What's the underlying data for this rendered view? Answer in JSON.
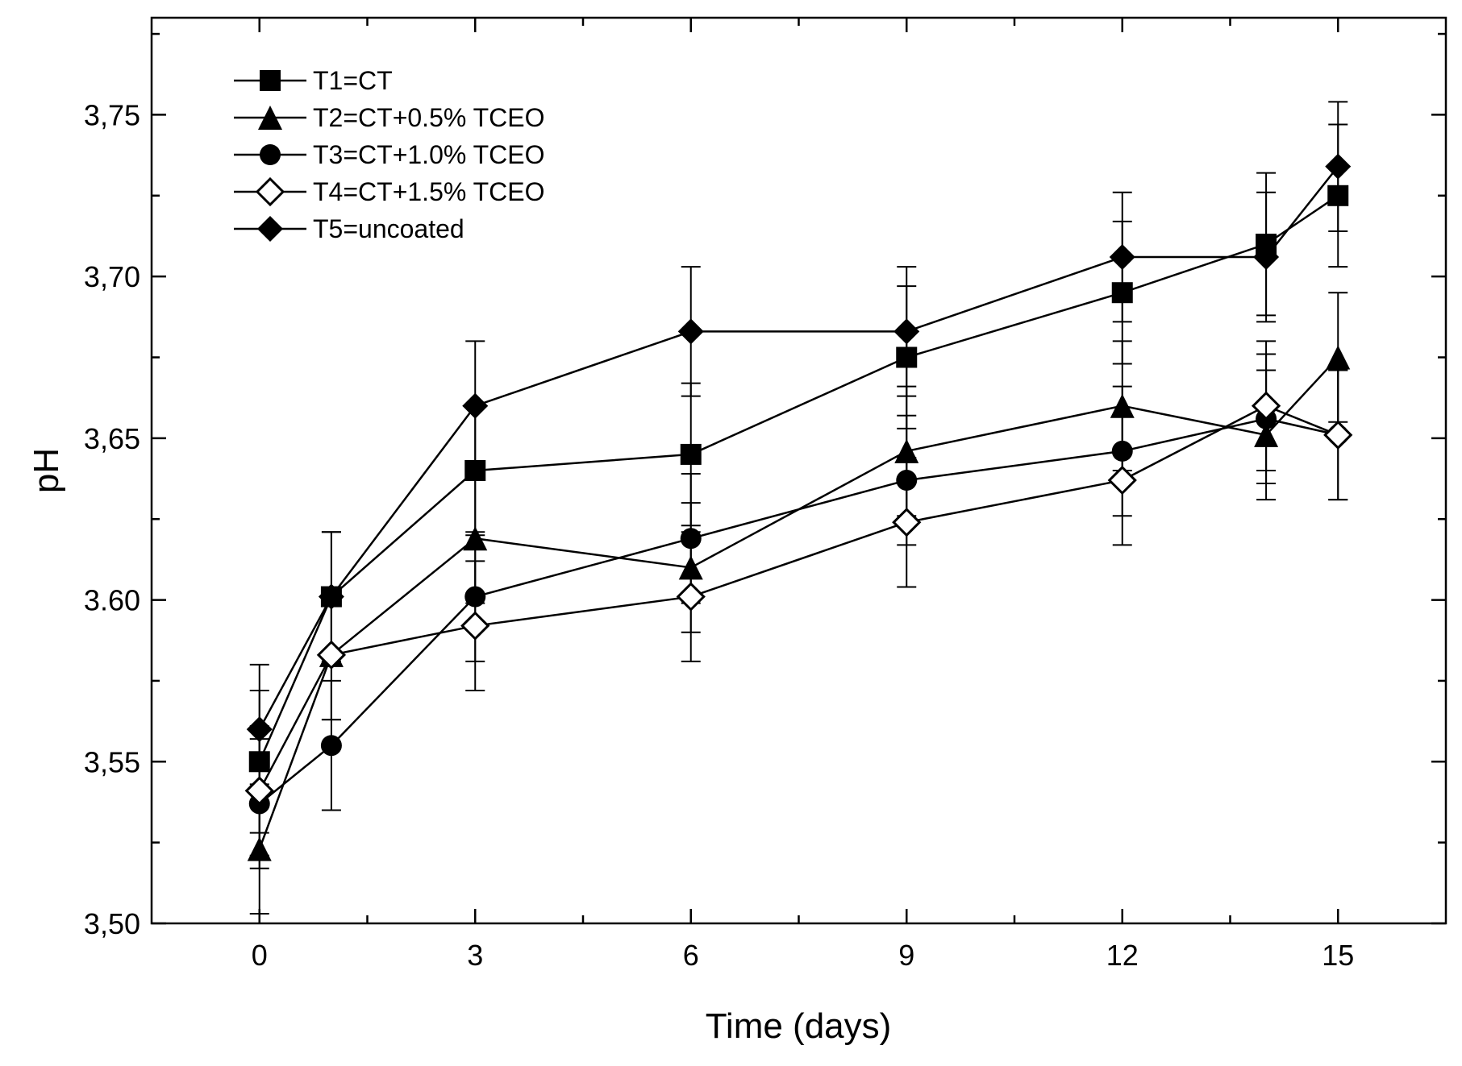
{
  "chart_data": {
    "type": "line",
    "title": "",
    "xlabel": "Time (days)",
    "ylabel": "pH",
    "xlim": [
      -1.5,
      16.5
    ],
    "ylim": [
      3.5,
      3.78
    ],
    "x_major_ticks": [
      0,
      3,
      6,
      9,
      12,
      15
    ],
    "x_tick_labels": [
      "0",
      "3",
      "6",
      "9",
      "12",
      "15"
    ],
    "x_minor_ticks": [
      1.5,
      4.5,
      7.5,
      10.5,
      13.5
    ],
    "y_major_ticks": [
      3.5,
      3.55,
      3.6,
      3.65,
      3.7,
      3.75
    ],
    "y_tick_labels": [
      "3,50",
      "3,55",
      "3.60",
      "3,65",
      "3,70",
      "3,75"
    ],
    "y_minor_ticks": [
      3.525,
      3.575,
      3.625,
      3.675,
      3.725,
      3.775
    ],
    "grid": false,
    "legend_position": "top-left",
    "x": [
      0,
      1,
      3,
      6,
      9,
      12,
      14,
      15
    ],
    "series": [
      {
        "name": "T1=CT",
        "marker": "filled-square",
        "values": [
          3.55,
          3.601,
          3.64,
          3.645,
          3.675,
          3.695,
          3.71,
          3.725
        ],
        "errors": [
          0.022,
          0.02,
          0.02,
          0.022,
          0.022,
          0.022,
          0.022,
          0.022
        ]
      },
      {
        "name": "T2=CT+0.5% TCEO",
        "marker": "filled-triangle",
        "values": [
          3.523,
          3.583,
          3.619,
          3.61,
          3.646,
          3.66,
          3.651,
          3.675
        ],
        "errors": [
          0.02,
          0.02,
          0.02,
          0.02,
          0.02,
          0.02,
          0.02,
          0.02
        ]
      },
      {
        "name": "T3=CT+1.0% TCEO",
        "marker": "filled-circle",
        "values": [
          3.537,
          3.555,
          3.601,
          3.619,
          3.637,
          3.646,
          3.656,
          3.651
        ],
        "errors": [
          0.02,
          0.02,
          0.02,
          0.02,
          0.02,
          0.02,
          0.02,
          0.02
        ]
      },
      {
        "name": "T4=CT+1.5% TCEO",
        "marker": "open-diamond",
        "values": [
          3.541,
          3.583,
          3.592,
          3.601,
          3.624,
          3.637,
          3.66,
          3.651
        ],
        "errors": [
          0.02,
          0.02,
          0.02,
          0.02,
          0.02,
          0.02,
          0.02,
          0.02
        ]
      },
      {
        "name": "T5=uncoated",
        "marker": "filled-diamond",
        "values": [
          3.56,
          3.601,
          3.66,
          3.683,
          3.683,
          3.706,
          3.706,
          3.734
        ],
        "errors": [
          0.02,
          0.02,
          0.02,
          0.02,
          0.02,
          0.02,
          0.02,
          0.02
        ]
      }
    ]
  }
}
